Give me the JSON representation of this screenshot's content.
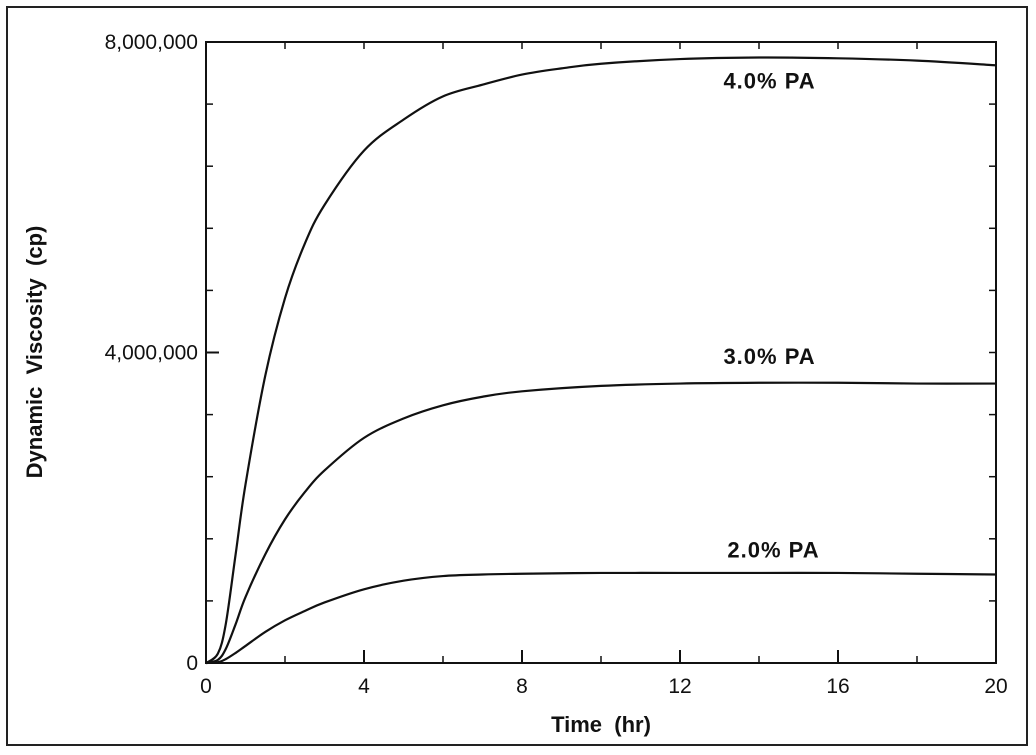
{
  "chart_data": {
    "type": "line",
    "title": "",
    "xlabel": "Time  (hr)",
    "ylabel": "Dynamic  Viscosity  (cp)",
    "xlim": [
      0,
      20
    ],
    "ylim": [
      0,
      8000000
    ],
    "x_ticks": [
      0,
      4,
      8,
      12,
      16,
      20
    ],
    "x_tick_labels": [
      "0",
      "4",
      "8",
      "12",
      "16",
      "20"
    ],
    "y_ticks": [
      0,
      4000000,
      8000000
    ],
    "y_tick_labels": [
      "0",
      "4,000,000",
      "8,000,000"
    ],
    "grid": false,
    "legend": "none (series labeled directly on curves)",
    "line_color": "#111111",
    "series": [
      {
        "name": "4.0% PA",
        "x": [
          0,
          0.3,
          0.5,
          0.75,
          1,
          1.5,
          2,
          2.5,
          3,
          4,
          5,
          6,
          7,
          8,
          9,
          10,
          12,
          14,
          16,
          18,
          20
        ],
        "y": [
          0,
          120000,
          500000,
          1400000,
          2300000,
          3700000,
          4700000,
          5400000,
          5900000,
          6600000,
          7000000,
          7300000,
          7450000,
          7580000,
          7660000,
          7720000,
          7780000,
          7800000,
          7790000,
          7760000,
          7700000
        ]
      },
      {
        "name": "3.0% PA",
        "x": [
          0,
          0.3,
          0.5,
          0.75,
          1,
          1.5,
          2,
          2.5,
          3,
          4,
          5,
          6,
          7,
          8,
          10,
          12,
          14,
          16,
          18,
          20
        ],
        "y": [
          0,
          40000,
          180000,
          500000,
          850000,
          1400000,
          1850000,
          2200000,
          2480000,
          2900000,
          3150000,
          3320000,
          3430000,
          3500000,
          3570000,
          3600000,
          3610000,
          3610000,
          3600000,
          3600000
        ]
      },
      {
        "name": "2.0% PA",
        "x": [
          0,
          0.3,
          0.5,
          0.75,
          1,
          1.5,
          2,
          2.5,
          3,
          4,
          5,
          6,
          7,
          8,
          10,
          12,
          14,
          16,
          18,
          20
        ],
        "y": [
          0,
          10000,
          50000,
          130000,
          220000,
          400000,
          550000,
          670000,
          780000,
          950000,
          1060000,
          1120000,
          1140000,
          1150000,
          1160000,
          1160000,
          1160000,
          1160000,
          1150000,
          1140000
        ]
      }
    ],
    "annotations": [
      {
        "text": "4.0% PA",
        "x": 13.1,
        "y": 7400000
      },
      {
        "text": "3.0% PA",
        "x": 13.1,
        "y": 3850000
      },
      {
        "text": "2.0% PA",
        "x": 13.2,
        "y": 1360000
      }
    ]
  }
}
